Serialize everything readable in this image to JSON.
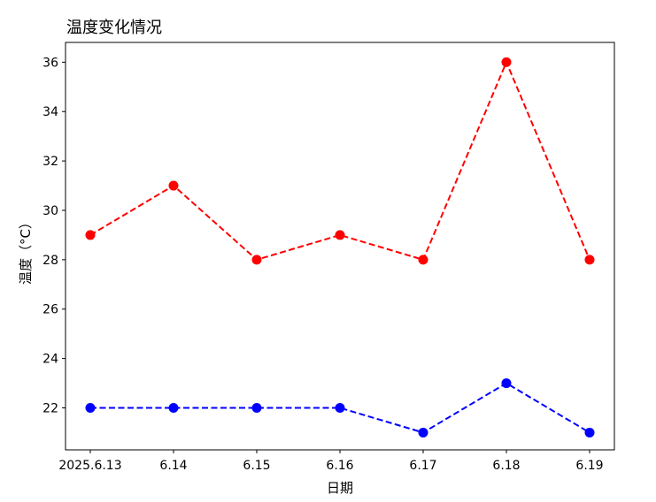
{
  "chart_data": {
    "type": "line",
    "title": "温度变化情况",
    "xlabel": "日期",
    "ylabel": "温度（°C）",
    "categories": [
      "2025.6.13",
      "6.14",
      "6.15",
      "6.16",
      "6.17",
      "6.18",
      "6.19"
    ],
    "ylim": [
      20.3,
      36.8
    ],
    "yticks": [
      22,
      24,
      26,
      28,
      30,
      32,
      34,
      36
    ],
    "grid": false,
    "series": [
      {
        "values": [
          29,
          31,
          28,
          29,
          28,
          36,
          28
        ],
        "color": "#ff0000",
        "linestyle": "dashed",
        "marker": "circle"
      },
      {
        "values": [
          22,
          22,
          22,
          22,
          21,
          23,
          21
        ],
        "color": "#0000ff",
        "linestyle": "dashed",
        "marker": "circle"
      }
    ]
  }
}
